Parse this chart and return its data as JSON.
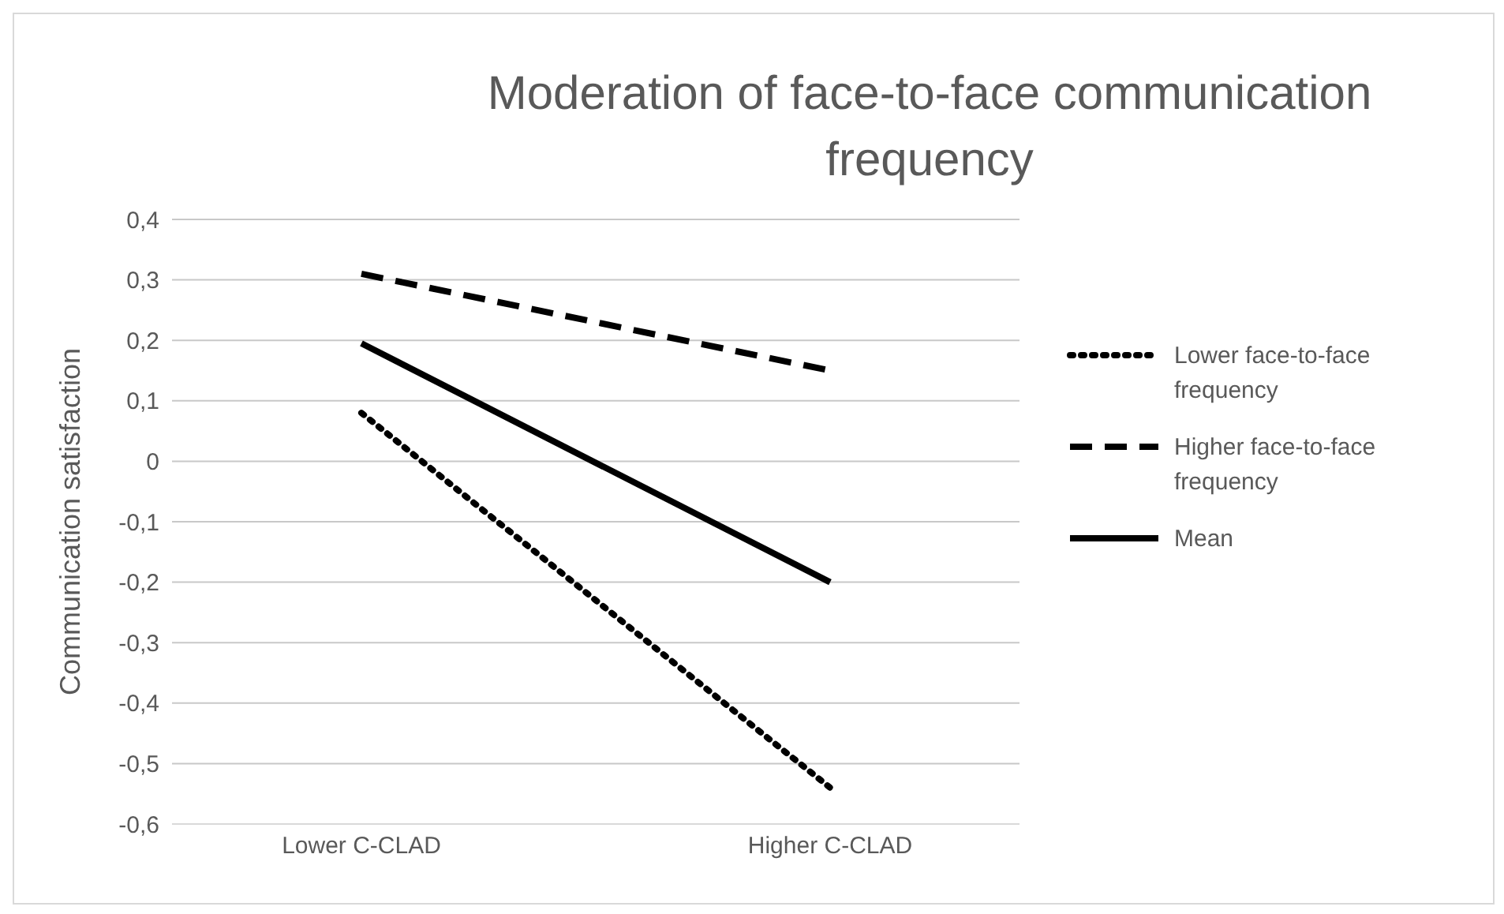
{
  "chart_data": {
    "type": "line",
    "title": "Moderation of face-to-face communication frequency",
    "ylabel": "Communication satisfaction",
    "categories": [
      "Lower C-CLAD",
      "Higher C-CLAD"
    ],
    "series": [
      {
        "name": "Lower face-to-face frequency",
        "color": "#000000",
        "values": [
          0.08,
          -0.54
        ],
        "line_style": "dotted"
      },
      {
        "name": "Higher face-to-face frequency",
        "color": "#000000",
        "values": [
          0.31,
          0.15
        ],
        "line_style": "dashed"
      },
      {
        "name": "Mean",
        "color": "#000000",
        "values": [
          0.195,
          -0.2
        ],
        "line_style": "solid"
      }
    ],
    "ylim": [
      -0.6,
      0.4
    ],
    "yticks": [
      {
        "value": -0.6,
        "label": "-0,6"
      },
      {
        "value": -0.5,
        "label": "-0,5"
      },
      {
        "value": -0.4,
        "label": "-0,4"
      },
      {
        "value": -0.3,
        "label": "-0,3"
      },
      {
        "value": -0.2,
        "label": "-0,2"
      },
      {
        "value": -0.1,
        "label": "-0,1"
      },
      {
        "value": 0,
        "label": "0"
      },
      {
        "value": 0.1,
        "label": "0,1"
      },
      {
        "value": 0.2,
        "label": "0,2"
      },
      {
        "value": 0.3,
        "label": "0,3"
      },
      {
        "value": 0.4,
        "label": "0,4"
      }
    ],
    "grid": "y",
    "legend": "right",
    "marker": "none"
  }
}
